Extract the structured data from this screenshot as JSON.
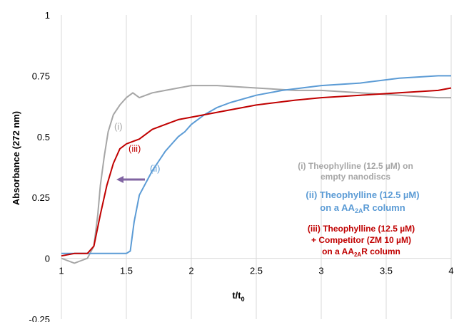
{
  "chart_data": {
    "type": "line",
    "xlabel": "t/t",
    "xlabel_sub": "0",
    "ylabel": "Absorbance (272 nm)",
    "xlim": [
      1,
      4
    ],
    "ylim": [
      -0.25,
      1
    ],
    "xticks": [
      "1",
      "1.5",
      "2",
      "2.5",
      "3",
      "3.5",
      "4"
    ],
    "xtick_values": [
      1,
      1.5,
      2,
      2.5,
      3,
      3.5,
      4
    ],
    "yticks": [
      "-0.25",
      "0",
      "0.25",
      "0.5",
      "0.75",
      "1"
    ],
    "ytick_values": [
      -0.25,
      0,
      0.25,
      0.5,
      0.75,
      1
    ],
    "grid": "vertical",
    "series": [
      {
        "name": "(i)",
        "color": "#a6a6a6",
        "x": [
          1.0,
          1.05,
          1.1,
          1.15,
          1.2,
          1.25,
          1.28,
          1.3,
          1.33,
          1.36,
          1.4,
          1.45,
          1.5,
          1.55,
          1.6,
          1.7,
          1.8,
          1.9,
          2.0,
          2.2,
          2.5,
          2.8,
          3.0,
          3.3,
          3.6,
          3.9,
          4.0
        ],
        "y": [
          0.0,
          -0.01,
          -0.02,
          -0.01,
          0.0,
          0.05,
          0.18,
          0.3,
          0.42,
          0.52,
          0.59,
          0.63,
          0.66,
          0.68,
          0.66,
          0.68,
          0.69,
          0.7,
          0.71,
          0.71,
          0.7,
          0.69,
          0.69,
          0.68,
          0.67,
          0.66,
          0.66
        ]
      },
      {
        "name": "(ii)",
        "color": "#5b9bd5",
        "x": [
          1.0,
          1.1,
          1.2,
          1.3,
          1.4,
          1.5,
          1.53,
          1.56,
          1.6,
          1.65,
          1.7,
          1.75,
          1.8,
          1.85,
          1.9,
          1.95,
          2.0,
          2.1,
          2.2,
          2.3,
          2.5,
          2.7,
          3.0,
          3.3,
          3.6,
          3.9,
          4.0
        ],
        "y": [
          0.02,
          0.02,
          0.02,
          0.02,
          0.02,
          0.02,
          0.03,
          0.15,
          0.26,
          0.31,
          0.36,
          0.4,
          0.44,
          0.47,
          0.5,
          0.52,
          0.55,
          0.59,
          0.62,
          0.64,
          0.67,
          0.69,
          0.71,
          0.72,
          0.74,
          0.75,
          0.75
        ]
      },
      {
        "name": "(iii)",
        "color": "#c00000",
        "x": [
          1.0,
          1.1,
          1.2,
          1.25,
          1.3,
          1.35,
          1.4,
          1.45,
          1.5,
          1.55,
          1.6,
          1.7,
          1.8,
          1.9,
          2.0,
          2.2,
          2.5,
          2.8,
          3.0,
          3.3,
          3.6,
          3.9,
          4.0
        ],
        "y": [
          0.01,
          0.02,
          0.02,
          0.05,
          0.18,
          0.3,
          0.39,
          0.45,
          0.47,
          0.48,
          0.49,
          0.53,
          0.55,
          0.57,
          0.58,
          0.6,
          0.63,
          0.65,
          0.66,
          0.67,
          0.68,
          0.69,
          0.7
        ]
      }
    ],
    "labels": {
      "i": "(i)",
      "ii": "(ii)",
      "iii": "(iii)"
    },
    "annotations": {
      "i_line1": "(i) Theophylline (12.5 µM) on",
      "i_line2": "empty nanodiscs",
      "ii_line1": "(ii) Theophylline (12.5 µM)",
      "ii_line2_a": "on a AA",
      "ii_line2_sub": "2A",
      "ii_line2_b": "R column",
      "iii_line1": "(iii) Theophylline (12.5 µM)",
      "iii_line2": "+ Competitor (ZM 10 µM)",
      "iii_line3_a": "on a AA",
      "iii_line3_sub": "2A",
      "iii_line3_b": "R column"
    },
    "colors": {
      "gray": "#a6a6a6",
      "blue": "#5b9bd5",
      "red": "#c00000",
      "arrow": "#8064a2"
    }
  }
}
